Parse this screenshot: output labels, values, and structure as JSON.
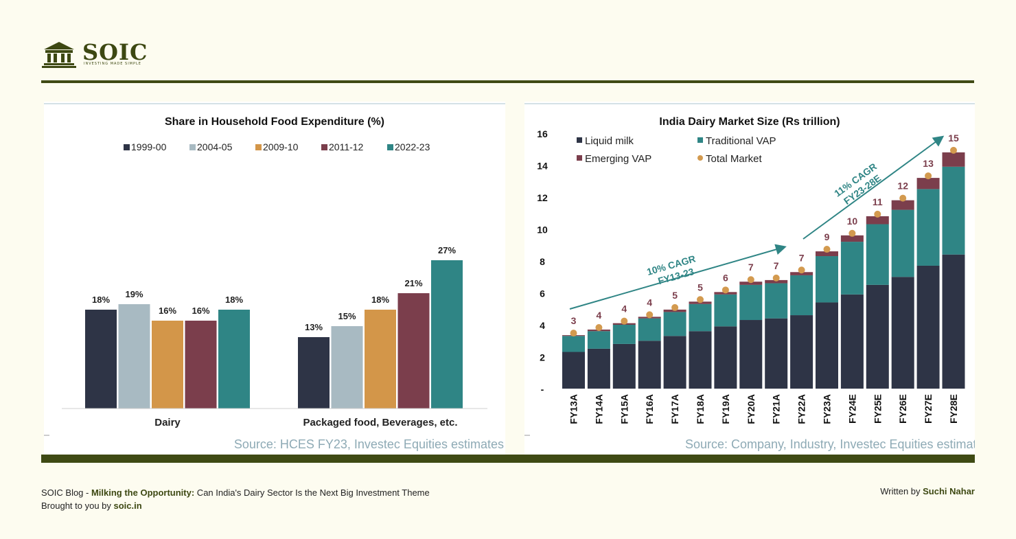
{
  "brand": {
    "name": "SOIC",
    "tagline": "INVESTING MADE SIMPLE"
  },
  "footer": {
    "prefix": "SOIC Blog - ",
    "headline": "Milking the Opportunity:",
    "rest": " Can India's Dairy Sector Is the Next Big Investment Theme",
    "brought_prefix": "Brought to you by ",
    "site": "soic.in",
    "written_prefix": "Written by ",
    "author": "Suchi Nahar"
  },
  "chart_data": [
    {
      "type": "bar",
      "title": "Share in Household Food Expenditure (%)",
      "categories": [
        "Dairy",
        "Packaged food, Beverages, etc."
      ],
      "series": [
        {
          "name": "1999-00",
          "values": [
            18,
            13
          ],
          "color": "#2e3446"
        },
        {
          "name": "2004-05",
          "values": [
            19,
            15
          ],
          "color": "#a8bac2"
        },
        {
          "name": "2009-10",
          "values": [
            16,
            18
          ],
          "color": "#d39649"
        },
        {
          "name": "2011-12",
          "values": [
            16,
            21
          ],
          "color": "#7b3e4c"
        },
        {
          "name": "2022-23",
          "values": [
            18,
            27
          ],
          "color": "#2f8585"
        }
      ],
      "ylim": [
        0,
        30
      ],
      "legend": "top",
      "source": "Source: HCES FY23, Investec Equities estimates"
    },
    {
      "type": "bar",
      "stacked": true,
      "title": "India Dairy Market Size (Rs trillion)",
      "categories": [
        "FY13A",
        "FY14A",
        "FY15A",
        "FY16A",
        "FY17A",
        "FY18A",
        "FY19A",
        "FY20A",
        "FY21A",
        "FY22A",
        "FY23A",
        "FY24E",
        "FY25E",
        "FY26E",
        "FY27E",
        "FY28E"
      ],
      "series": [
        {
          "name": "Liquid milk",
          "color": "#2e3446",
          "values": [
            2.3,
            2.5,
            2.8,
            3.0,
            3.3,
            3.6,
            3.9,
            4.3,
            4.4,
            4.6,
            5.4,
            5.9,
            6.5,
            7.0,
            7.7,
            8.4
          ]
        },
        {
          "name": "Traditional VAP",
          "color": "#2f8585",
          "values": [
            1.0,
            1.1,
            1.2,
            1.4,
            1.5,
            1.7,
            2.0,
            2.2,
            2.2,
            2.5,
            2.9,
            3.3,
            3.8,
            4.2,
            4.8,
            5.5
          ]
        },
        {
          "name": "Emerging VAP",
          "color": "#7b3e4c",
          "values": [
            0.05,
            0.1,
            0.1,
            0.1,
            0.15,
            0.15,
            0.15,
            0.2,
            0.2,
            0.2,
            0.3,
            0.4,
            0.5,
            0.6,
            0.7,
            0.9
          ]
        }
      ],
      "total_series": {
        "name": "Total Market",
        "color": "#d39a4f",
        "values": [
          3,
          4,
          4,
          4,
          5,
          5,
          6,
          7,
          7,
          7,
          9,
          10,
          11,
          12,
          13,
          15
        ]
      },
      "yticks": [
        "-",
        "2",
        "4",
        "6",
        "8",
        "10",
        "12",
        "14",
        "16"
      ],
      "ylim": [
        0,
        16
      ],
      "legend": "top-left",
      "annotations": [
        {
          "text": [
            "10% CAGR",
            "FY13-23"
          ]
        },
        {
          "text": [
            "11% CAGR",
            "FY23-28E"
          ]
        }
      ],
      "source": "Source: Company, Industry, Investec Equities estimate"
    }
  ]
}
